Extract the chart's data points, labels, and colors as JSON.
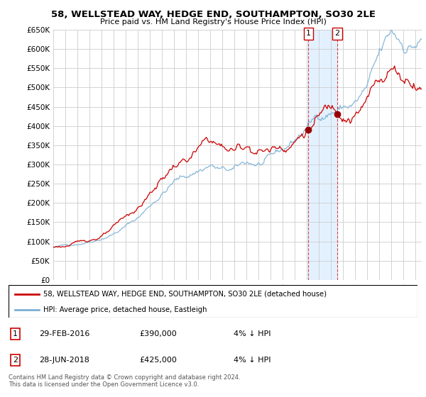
{
  "title": "58, WELLSTEAD WAY, HEDGE END, SOUTHAMPTON, SO30 2LE",
  "subtitle": "Price paid vs. HM Land Registry's House Price Index (HPI)",
  "legend_line1": "58, WELLSTEAD WAY, HEDGE END, SOUTHAMPTON, SO30 2LE (detached house)",
  "legend_line2": "HPI: Average price, detached house, Eastleigh",
  "transaction1_date": "29-FEB-2016",
  "transaction1_price": "£390,000",
  "transaction1_hpi": "4% ↓ HPI",
  "transaction2_date": "28-JUN-2018",
  "transaction2_price": "£425,000",
  "transaction2_hpi": "4% ↓ HPI",
  "footnote1": "Contains HM Land Registry data © Crown copyright and database right 2024.",
  "footnote2": "This data is licensed under the Open Government Licence v3.0.",
  "red_color": "#cc0000",
  "blue_color": "#7ab0d4",
  "dot_color": "#990000",
  "shaded_color": "#ddeeff",
  "grid_color": "#cccccc",
  "ylim": [
    0,
    650000
  ],
  "xlim_start": 1995.0,
  "xlim_end": 2025.5,
  "transaction1_x": 2016.12,
  "transaction2_x": 2018.5
}
